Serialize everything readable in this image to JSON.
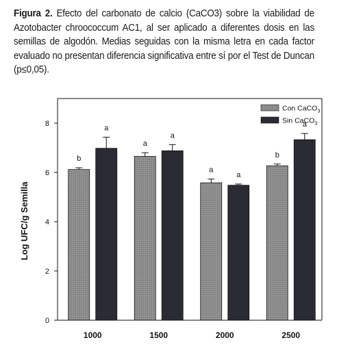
{
  "caption": {
    "label": "Figura 2.",
    "text": "Efecto del carbonato de calcio (CaCO3) sobre la viabilidad de Azotobacter chroococcum AC1, al ser aplicado a diferentes dosis en las semillas de algodón. Medias seguidas con la misma letra en cada factor evaluado no presentan diferencia significativa entre sí por el Test de Duncan (p≤0,05)."
  },
  "chart_data": {
    "type": "bar",
    "title": "",
    "xlabel": "",
    "ylabel": "Log UFC/g Semilla",
    "ylim": [
      0,
      9
    ],
    "yticks": [
      0,
      2,
      4,
      6,
      8
    ],
    "categories": [
      "1000",
      "1500",
      "2000",
      "2500"
    ],
    "legend_position": "top-right",
    "grid": false,
    "series": [
      {
        "name": "Con CaCO3",
        "name_base": "Con CaCO",
        "name_sub": "3",
        "color": "#8c8c8c",
        "values": [
          6.12,
          6.65,
          5.58,
          6.27
        ],
        "errors": [
          0.07,
          0.15,
          0.15,
          0.07
        ],
        "letters": [
          "b",
          "a",
          "a",
          "b"
        ]
      },
      {
        "name": "Sin CaCO3",
        "name_base": "Sin CaCO",
        "name_sub": "3",
        "color": "#2b2b33",
        "values": [
          6.98,
          6.88,
          5.48,
          7.33
        ],
        "errors": [
          0.45,
          0.25,
          0.05,
          0.25
        ],
        "letters": [
          "a",
          "a",
          "a",
          "a"
        ]
      }
    ]
  }
}
